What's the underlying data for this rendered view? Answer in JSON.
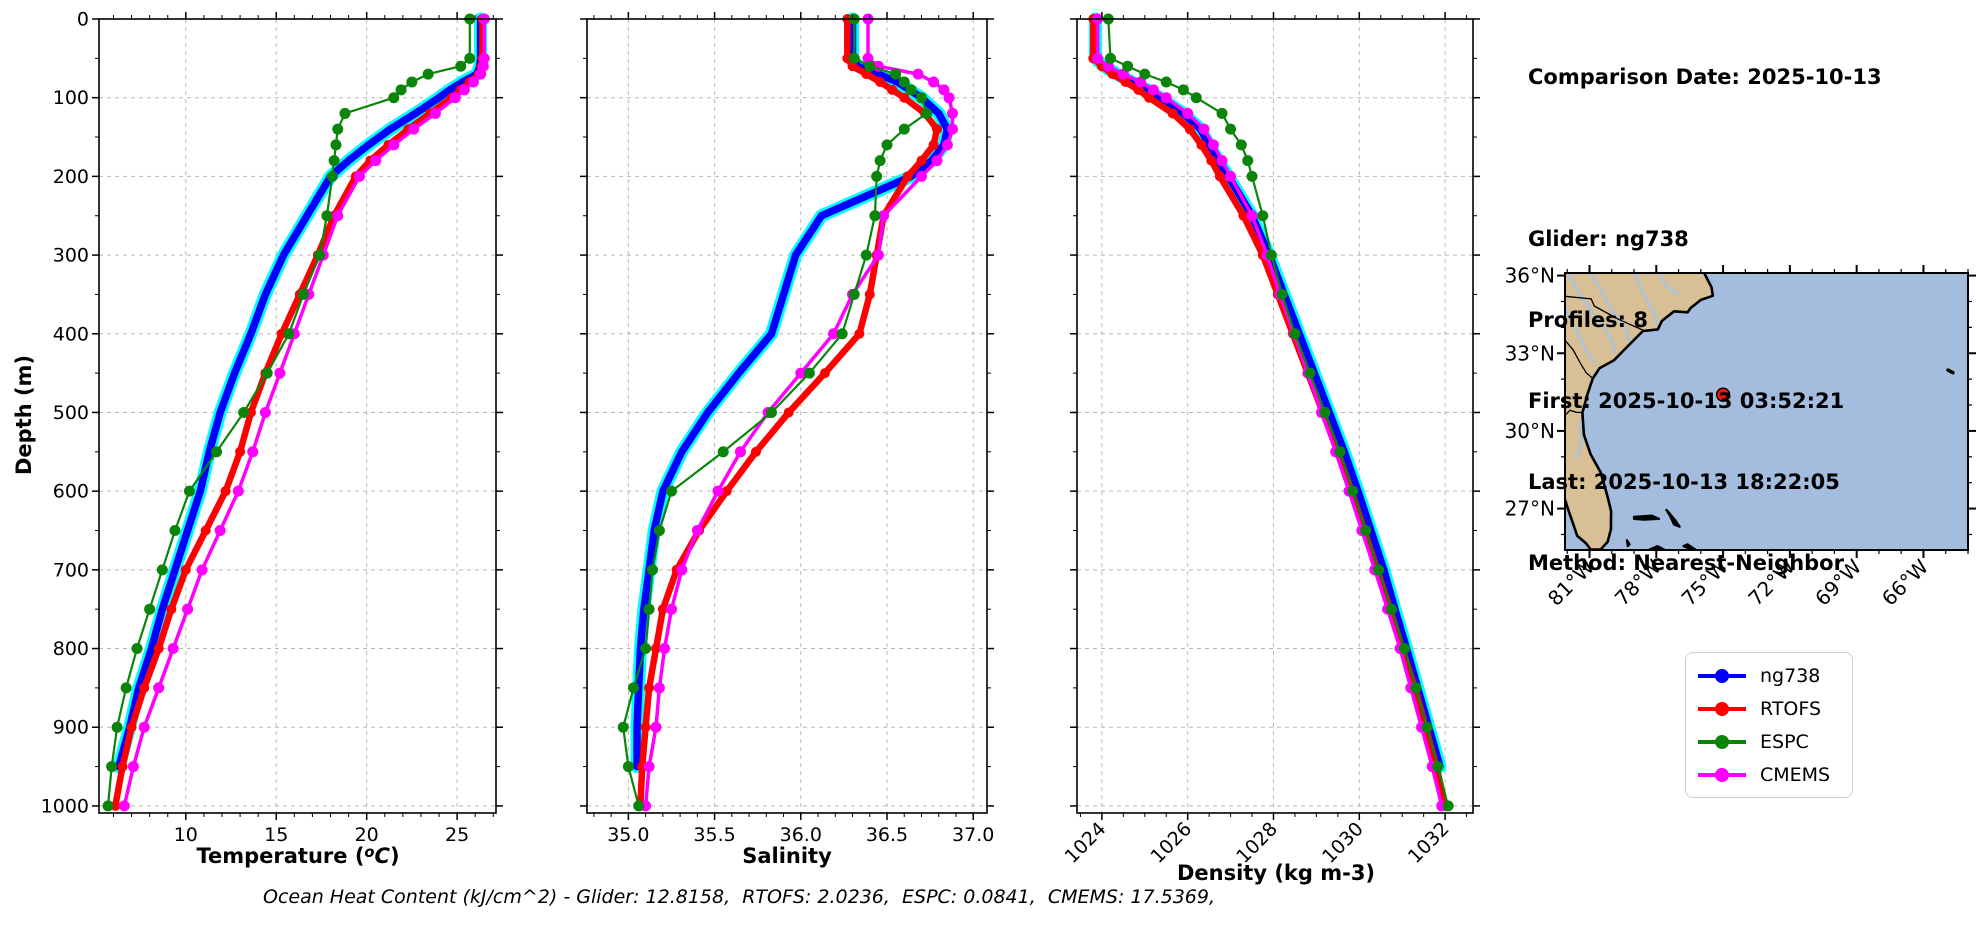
{
  "info_panel": {
    "comparison_date": "Comparison Date: 2025-10-13",
    "glider": "Glider: ng738",
    "profiles": "Profiles: 8",
    "first": "First: 2025-10-13 03:52:21",
    "last": "Last: 2025-10-13 18:22:05",
    "method": "Method: Nearest-Neighbor"
  },
  "caption": "Ocean Heat Content (kJ/cm^2) - Glider: 12.8158,  RTOFS: 2.0236,  ESPC: 0.0841,  CMEMS: 17.5369,",
  "axes": {
    "ylabel": "Depth (m)",
    "temp_parts": {
      "prefix": "Temperature (",
      "sup": "o",
      "ital": "C",
      "suffix": ")"
    },
    "salinity_label": "Salinity",
    "density_label": "Density (kg m-3)"
  },
  "legend": {
    "items": [
      {
        "label": "ng738",
        "color": "#0000ff"
      },
      {
        "label": "RTOFS",
        "color": "#ff0000"
      },
      {
        "label": "ESPC",
        "color": "#0a850a"
      },
      {
        "label": "CMEMS",
        "color": "#ff00ff"
      }
    ]
  },
  "chart_data": {
    "type": "line",
    "title": "Glider ng738 vs model profile comparison",
    "ylabel": "Depth (m)",
    "ylim": [
      0,
      1009
    ],
    "yticks": [
      0,
      100,
      200,
      300,
      400,
      500,
      600,
      700,
      800,
      900,
      1000
    ],
    "yminor": 50,
    "grid": true,
    "depths": [
      0,
      50,
      60,
      70,
      80,
      90,
      100,
      120,
      140,
      160,
      180,
      200,
      250,
      300,
      350,
      400,
      450,
      500,
      550,
      600,
      650,
      700,
      750,
      800,
      850,
      900,
      950,
      1000
    ],
    "series_meta": [
      {
        "name": "ng738",
        "color": "#0000ff",
        "halo": "#00ffff",
        "width": 7.5,
        "halo_width": 13,
        "markers": false,
        "msize": 0
      },
      {
        "name": "RTOFS",
        "color": "#ff0000",
        "width": 6.5,
        "markers": true,
        "msize": 5
      },
      {
        "name": "CMEMS",
        "color": "#ff00ff",
        "width": 3.5,
        "markers": true,
        "msize": 5.5
      },
      {
        "name": "ESPC",
        "color": "#0a850a",
        "width": 2.2,
        "markers": true,
        "msize": 5.5
      }
    ],
    "panels": [
      {
        "xlabel": "Temperature (°C)",
        "xlim": [
          5.2,
          27.15
        ],
        "xticks": [
          10,
          15,
          20,
          25
        ],
        "xtick_decimals": 0,
        "xminor": 1,
        "show_yticklabels": true,
        "rotate_xticklabels": 0,
        "values": {
          "ng738": [
            26.3,
            26.3,
            26.25,
            26.1,
            25.3,
            24.6,
            24.0,
            22.7,
            21.3,
            20.1,
            19.0,
            18.0,
            16.7,
            15.4,
            14.4,
            13.6,
            12.7,
            11.9,
            11.3,
            10.8,
            10.1,
            9.4,
            8.7,
            8.1,
            7.4,
            6.9,
            6.3,
            null
          ],
          "RTOFS": [
            26.4,
            26.4,
            26.35,
            26.2,
            25.7,
            25.2,
            24.7,
            23.5,
            22.3,
            21.2,
            20.2,
            19.4,
            18.2,
            17.3,
            16.3,
            15.3,
            14.4,
            13.6,
            13.0,
            12.2,
            11.1,
            10.0,
            9.2,
            8.5,
            7.7,
            7.0,
            6.5,
            6.1
          ],
          "ESPC": [
            25.7,
            25.7,
            25.2,
            23.4,
            22.5,
            21.9,
            21.5,
            18.8,
            18.4,
            18.3,
            18.2,
            18.1,
            17.8,
            17.4,
            16.5,
            15.7,
            14.5,
            13.2,
            11.7,
            10.2,
            9.4,
            8.7,
            8.0,
            7.3,
            6.7,
            6.2,
            5.9,
            5.7
          ],
          "CMEMS": [
            26.5,
            26.5,
            26.45,
            26.3,
            25.9,
            25.4,
            24.9,
            23.8,
            22.6,
            21.5,
            20.5,
            19.6,
            18.4,
            17.6,
            16.8,
            16.0,
            15.2,
            14.4,
            13.7,
            12.9,
            11.9,
            10.9,
            10.1,
            9.3,
            8.5,
            7.7,
            7.1,
            6.6
          ]
        }
      },
      {
        "xlabel": "Salinity",
        "xlim": [
          34.76,
          37.08
        ],
        "xticks": [
          35.0,
          35.5,
          36.0,
          36.5,
          37.0
        ],
        "xtick_decimals": 1,
        "xminor": 0.1,
        "show_yticklabels": false,
        "rotate_xticklabels": 0,
        "values": {
          "ng738": [
            36.3,
            36.3,
            36.33,
            36.45,
            36.56,
            36.63,
            36.7,
            36.8,
            36.85,
            36.83,
            36.76,
            36.64,
            36.12,
            35.97,
            35.9,
            35.83,
            35.64,
            35.46,
            35.31,
            35.2,
            35.15,
            35.12,
            35.09,
            35.07,
            35.06,
            35.05,
            35.05,
            null
          ],
          "RTOFS": [
            36.27,
            36.27,
            36.3,
            36.38,
            36.46,
            36.53,
            36.6,
            36.72,
            36.79,
            36.77,
            36.7,
            36.62,
            36.48,
            36.44,
            36.4,
            36.34,
            36.14,
            35.93,
            35.74,
            35.57,
            35.41,
            35.28,
            35.2,
            35.16,
            35.12,
            35.1,
            35.08,
            35.07
          ],
          "ESPC": [
            36.31,
            36.31,
            36.4,
            36.55,
            36.6,
            36.64,
            36.7,
            36.73,
            36.6,
            36.5,
            36.46,
            36.44,
            36.43,
            36.38,
            36.31,
            36.24,
            36.05,
            35.83,
            35.55,
            35.25,
            35.18,
            35.14,
            35.12,
            35.1,
            35.03,
            34.97,
            35.0,
            35.06
          ],
          "CMEMS": [
            36.39,
            36.39,
            36.45,
            36.68,
            36.77,
            36.83,
            36.86,
            36.88,
            36.88,
            36.85,
            36.79,
            36.7,
            36.48,
            36.45,
            36.3,
            36.19,
            36.0,
            35.81,
            35.65,
            35.52,
            35.4,
            35.31,
            35.25,
            35.21,
            35.18,
            35.16,
            35.12,
            35.1
          ]
        }
      },
      {
        "xlabel": "Density (kg m-3)",
        "xlim": [
          1023.42,
          1032.65
        ],
        "xticks": [
          1024,
          1026,
          1028,
          1030,
          1032
        ],
        "xtick_decimals": 0,
        "xminor": 0.5,
        "show_yticklabels": false,
        "rotate_xticklabels": 45,
        "values": {
          "ng738": [
            1023.85,
            1023.85,
            1024.05,
            1024.35,
            1024.7,
            1025.05,
            1025.35,
            1025.9,
            1026.3,
            1026.5,
            1026.72,
            1026.95,
            1027.5,
            1027.9,
            1028.25,
            1028.6,
            1028.95,
            1029.3,
            1029.65,
            1029.97,
            1030.27,
            1030.57,
            1030.83,
            1031.1,
            1031.36,
            1031.62,
            1031.88,
            null
          ],
          "RTOFS": [
            1023.8,
            1023.8,
            1024.0,
            1024.25,
            1024.55,
            1024.85,
            1025.1,
            1025.65,
            1026.05,
            1026.32,
            1026.55,
            1026.75,
            1027.3,
            1027.75,
            1028.1,
            1028.45,
            1028.8,
            1029.15,
            1029.5,
            1029.82,
            1030.12,
            1030.42,
            1030.72,
            1031.0,
            1031.3,
            1031.55,
            1031.8,
            1032.0
          ],
          "ESPC": [
            1024.15,
            1024.2,
            1024.6,
            1025.0,
            1025.5,
            1025.9,
            1026.2,
            1026.8,
            1027.0,
            1027.25,
            1027.4,
            1027.5,
            1027.75,
            1027.95,
            1028.2,
            1028.5,
            1028.85,
            1029.2,
            1029.55,
            1029.85,
            1030.15,
            1030.45,
            1030.75,
            1031.05,
            1031.32,
            1031.58,
            1031.83,
            1032.07
          ],
          "CMEMS": [
            1023.9,
            1023.9,
            1024.15,
            1024.5,
            1024.9,
            1025.2,
            1025.5,
            1026.0,
            1026.38,
            1026.6,
            1026.8,
            1027.0,
            1027.5,
            1027.85,
            1028.15,
            1028.48,
            1028.8,
            1029.12,
            1029.45,
            1029.76,
            1030.06,
            1030.36,
            1030.66,
            1030.95,
            1031.2,
            1031.45,
            1031.7,
            1031.92
          ]
        }
      }
    ]
  },
  "map": {
    "extent": {
      "lon": [
        -82.1,
        -64.0
      ],
      "lat": [
        25.4,
        36.1
      ]
    },
    "lon_ticks": [
      {
        "v": -81,
        "label": "81°W"
      },
      {
        "v": -78,
        "label": "78°W"
      },
      {
        "v": -75,
        "label": "75°W"
      },
      {
        "v": -72,
        "label": "72°W"
      },
      {
        "v": -69,
        "label": "69°W"
      },
      {
        "v": -66,
        "label": "66°W"
      }
    ],
    "lat_ticks": [
      {
        "v": 36,
        "label": "36°N"
      },
      {
        "v": 33,
        "label": "33°N"
      },
      {
        "v": 30,
        "label": "30°N"
      },
      {
        "v": 27,
        "label": "27°N"
      }
    ],
    "minor_deg": 1,
    "colors": {
      "ocean": "#a4bddf",
      "land": "#d8bf96",
      "river": "#9ec4ef",
      "coast": "#000000",
      "marker": "#ec1212"
    },
    "marker": {
      "lon": -75.0,
      "lat": 31.4
    },
    "coast": [
      [
        -75.85,
        36.1
      ],
      [
        -75.7,
        35.85
      ],
      [
        -75.52,
        35.55
      ],
      [
        -75.46,
        35.22
      ],
      [
        -76.0,
        35.06
      ],
      [
        -76.45,
        34.75
      ],
      [
        -76.6,
        34.58
      ],
      [
        -77.2,
        34.62
      ],
      [
        -77.75,
        34.25
      ],
      [
        -77.93,
        33.92
      ],
      [
        -78.6,
        33.86
      ],
      [
        -79.25,
        33.3
      ],
      [
        -79.9,
        32.73
      ],
      [
        -80.55,
        32.42
      ],
      [
        -80.85,
        32.03
      ],
      [
        -81.1,
        31.4
      ],
      [
        -81.32,
        30.7
      ],
      [
        -81.25,
        29.85
      ],
      [
        -80.95,
        29.1
      ],
      [
        -80.5,
        28.4
      ],
      [
        -80.2,
        27.5
      ],
      [
        -80.03,
        26.9
      ],
      [
        -80.04,
        26.2
      ],
      [
        -80.18,
        25.72
      ],
      [
        -80.5,
        25.42
      ],
      [
        -80.95,
        25.42
      ],
      [
        -81.15,
        25.65
      ],
      [
        -81.55,
        25.95
      ],
      [
        -81.75,
        26.45
      ],
      [
        -81.95,
        26.95
      ],
      [
        -82.1,
        27.35
      ]
    ],
    "borders": [
      [
        [
          -82.1,
          35.2
        ],
        [
          -80.93,
          35.1
        ],
        [
          -80.78,
          34.82
        ],
        [
          -79.67,
          34.3
        ],
        [
          -78.56,
          33.88
        ]
      ],
      [
        [
          -82.1,
          33.5
        ],
        [
          -81.75,
          33.15
        ],
        [
          -81.4,
          32.6
        ],
        [
          -81.15,
          32.25
        ],
        [
          -80.87,
          32.04
        ]
      ],
      [
        [
          -82.1,
          30.6
        ],
        [
          -81.87,
          30.8
        ],
        [
          -81.6,
          30.72
        ],
        [
          -81.34,
          30.71
        ]
      ]
    ],
    "rivers": [
      [
        [
          -80.95,
          36.1
        ],
        [
          -80.4,
          35.3
        ],
        [
          -79.9,
          34.55
        ],
        [
          -79.35,
          33.95
        ],
        [
          -79.18,
          33.35
        ]
      ],
      [
        [
          -81.95,
          36.1
        ],
        [
          -81.35,
          35.15
        ],
        [
          -80.75,
          34.45
        ],
        [
          -80.1,
          33.7
        ],
        [
          -79.82,
          33.0
        ]
      ],
      [
        [
          -82.1,
          34.75
        ],
        [
          -81.6,
          33.9
        ],
        [
          -81.15,
          33.1
        ],
        [
          -80.72,
          32.62
        ]
      ],
      [
        [
          -77.9,
          36.1
        ],
        [
          -77.5,
          35.55
        ],
        [
          -76.95,
          35.28
        ]
      ],
      [
        [
          -78.95,
          36.1
        ],
        [
          -78.6,
          35.3
        ],
        [
          -78.05,
          34.5
        ],
        [
          -77.97,
          34.05
        ]
      ],
      [
        [
          -81.55,
          28.9
        ],
        [
          -81.35,
          29.6
        ],
        [
          -81.45,
          30.2
        ],
        [
          -81.32,
          30.55
        ]
      ]
    ],
    "islands": [
      [
        [
          -79.0,
          26.68
        ],
        [
          -78.2,
          26.73
        ],
        [
          -77.88,
          26.6
        ],
        [
          -78.55,
          26.57
        ],
        [
          -79.0,
          26.6
        ]
      ],
      [
        [
          -77.5,
          26.92
        ],
        [
          -77.15,
          26.55
        ],
        [
          -76.95,
          26.3
        ],
        [
          -77.2,
          26.38
        ],
        [
          -77.4,
          26.75
        ],
        [
          -77.55,
          26.95
        ]
      ],
      [
        [
          -78.3,
          25.42
        ],
        [
          -77.95,
          25.55
        ],
        [
          -77.65,
          25.42
        ]
      ],
      [
        [
          -76.78,
          25.55
        ],
        [
          -76.45,
          25.42
        ],
        [
          -76.25,
          25.42
        ],
        [
          -76.6,
          25.62
        ]
      ],
      [
        [
          -79.32,
          25.78
        ],
        [
          -79.2,
          25.62
        ],
        [
          -79.28,
          25.55
        ]
      ]
    ],
    "bermuda": [
      [
        -64.9,
        32.35
      ],
      [
        -64.68,
        32.25
      ]
    ]
  }
}
